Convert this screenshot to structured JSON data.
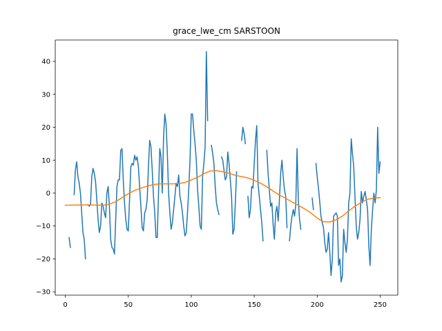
{
  "chart_data": {
    "type": "line",
    "title": "grace_lwe_cm SARSTOON",
    "xlabel": "",
    "ylabel": "",
    "xlim": [
      -8,
      264
    ],
    "ylim": [
      -31,
      46.5
    ],
    "xticks": [
      0,
      50,
      100,
      150,
      200,
      250
    ],
    "yticks": [
      -30,
      -20,
      -10,
      0,
      10,
      20,
      30,
      40
    ],
    "grid": false,
    "legend": "none",
    "series": [
      {
        "color": "#1f77b4",
        "segments": [
          [
            [
              3,
              -13.5
            ],
            [
              4,
              -16.5
            ]
          ],
          [
            [
              7,
              -0.5
            ],
            [
              8,
              7
            ],
            [
              9,
              9.5
            ],
            [
              10,
              5
            ],
            [
              11,
              3
            ],
            [
              12,
              0
            ],
            [
              13,
              -6
            ],
            [
              14,
              -12
            ],
            [
              15,
              -14
            ],
            [
              16,
              -20
            ]
          ],
          [
            [
              18,
              -3.5
            ],
            [
              19,
              -4
            ],
            [
              20,
              -3.5
            ],
            [
              21,
              5
            ],
            [
              22,
              7.5
            ],
            [
              23,
              6
            ],
            [
              24,
              3.5
            ],
            [
              25,
              -2
            ],
            [
              26,
              -8
            ],
            [
              27,
              -12
            ],
            [
              28,
              -10
            ],
            [
              29,
              -3
            ],
            [
              30,
              -4
            ],
            [
              31,
              -6
            ],
            [
              32,
              -7.5
            ],
            [
              33,
              0
            ],
            [
              34,
              2
            ],
            [
              35,
              -4
            ],
            [
              36,
              -14
            ],
            [
              37,
              -16.5
            ],
            [
              38,
              -17
            ],
            [
              39,
              -18.5
            ],
            [
              40,
              -8
            ],
            [
              41,
              2
            ],
            [
              42,
              4
            ],
            [
              43,
              4
            ],
            [
              44,
              13
            ],
            [
              45,
              13.5
            ],
            [
              46,
              4
            ],
            [
              47,
              -3
            ],
            [
              48,
              -8
            ],
            [
              49,
              -11
            ],
            [
              50,
              -11.5
            ],
            [
              51,
              -2
            ],
            [
              52,
              8
            ],
            [
              53,
              9
            ],
            [
              54,
              8.5
            ],
            [
              55,
              11.5
            ],
            [
              56,
              10
            ],
            [
              57,
              11
            ],
            [
              58,
              8
            ],
            [
              59,
              2
            ],
            [
              60,
              -4
            ],
            [
              61,
              -10.5
            ],
            [
              62,
              -11.5
            ],
            [
              63,
              -6
            ],
            [
              64,
              -5
            ],
            [
              65,
              -2
            ],
            [
              66,
              8
            ],
            [
              67,
              16
            ],
            [
              68,
              14
            ],
            [
              69,
              7
            ],
            [
              70,
              -1
            ],
            [
              71,
              -6
            ],
            [
              72,
              -13.5
            ],
            [
              73,
              -13.5
            ],
            [
              74,
              0
            ],
            [
              75,
              13.5
            ],
            [
              76,
              11
            ],
            [
              77,
              0
            ],
            [
              78,
              17
            ],
            [
              79,
              24
            ],
            [
              80,
              21
            ],
            [
              81,
              12
            ],
            [
              82,
              0
            ],
            [
              83,
              -6
            ],
            [
              84,
              -11
            ],
            [
              85,
              -9
            ],
            [
              86,
              -5
            ],
            [
              87,
              -1
            ],
            [
              88,
              3
            ],
            [
              89,
              2
            ],
            [
              90,
              5.5
            ],
            [
              91,
              -1
            ],
            [
              92,
              -3
            ],
            [
              93,
              -6
            ],
            [
              94,
              -10
            ],
            [
              95,
              -13
            ],
            [
              96,
              -12
            ],
            [
              97,
              -6
            ],
            [
              98,
              1
            ],
            [
              99,
              10
            ],
            [
              100,
              24
            ],
            [
              101,
              24
            ],
            [
              102,
              19
            ],
            [
              103,
              15
            ],
            [
              104,
              10
            ],
            [
              105,
              1
            ],
            [
              106,
              -4
            ],
            [
              107,
              -10
            ],
            [
              108,
              -11
            ],
            [
              109,
              5
            ],
            [
              110,
              9
            ],
            [
              111,
              14
            ],
            [
              112,
              43
            ],
            [
              113,
              22
            ]
          ],
          [
            [
              116,
              14.5
            ],
            [
              117,
              12
            ],
            [
              118,
              9
            ],
            [
              119,
              2
            ],
            [
              120,
              -3
            ],
            [
              121,
              -5
            ],
            [
              122,
              -6.5
            ]
          ],
          [
            [
              124,
              11
            ],
            [
              125,
              10
            ],
            [
              126,
              7
            ],
            [
              127,
              4
            ],
            [
              128,
              5
            ],
            [
              129,
              12.5
            ],
            [
              130,
              9
            ],
            [
              131,
              4
            ],
            [
              132,
              -1
            ],
            [
              133,
              -12.5
            ],
            [
              134,
              -11
            ],
            [
              135,
              -3
            ],
            [
              136,
              6.5
            ]
          ],
          [
            [
              140,
              16
            ],
            [
              141,
              20
            ],
            [
              142,
              18
            ],
            [
              143,
              15
            ]
          ],
          [
            [
              145,
              -1
            ],
            [
              146,
              -7.5
            ],
            [
              147,
              -5
            ],
            [
              148,
              2
            ],
            [
              149,
              1.5
            ],
            [
              150,
              9
            ],
            [
              151,
              16
            ],
            [
              152,
              20.5
            ],
            [
              153,
              3
            ],
            [
              154,
              -1
            ],
            [
              155,
              -5
            ],
            [
              156,
              -9
            ],
            [
              157,
              -14.5
            ]
          ],
          [
            [
              160,
              13
            ],
            [
              161,
              6
            ],
            [
              162,
              1
            ],
            [
              163,
              -4
            ],
            [
              164,
              -3
            ],
            [
              165,
              -9.5
            ],
            [
              166,
              -14
            ],
            [
              167,
              -6
            ],
            [
              168,
              -4
            ],
            [
              169,
              -8.5
            ],
            [
              170,
              -2
            ],
            [
              171,
              6
            ],
            [
              172,
              10
            ],
            [
              173,
              5
            ],
            [
              174,
              1
            ],
            [
              175,
              -1
            ],
            [
              176,
              -10.5
            ]
          ],
          [
            [
              178,
              -14.5
            ],
            [
              179,
              -10
            ],
            [
              180,
              -7
            ],
            [
              181,
              -5
            ],
            [
              182,
              -7
            ],
            [
              183,
              -3.5
            ],
            [
              184,
              13.5
            ],
            [
              185,
              -2
            ],
            [
              186,
              -8
            ],
            [
              187,
              -11
            ]
          ],
          [
            [
              196,
              -1.5
            ],
            [
              197,
              -5
            ]
          ],
          [
            [
              199,
              9
            ],
            [
              200,
              5
            ],
            [
              201,
              1.5
            ],
            [
              202,
              -2.5
            ],
            [
              203,
              -7
            ],
            [
              204,
              -9
            ],
            [
              205,
              -10.5
            ],
            [
              206,
              -15
            ],
            [
              207,
              -18
            ],
            [
              208,
              -17
            ],
            [
              209,
              -12
            ],
            [
              210,
              -18
            ],
            [
              211,
              -25
            ],
            [
              212,
              -20
            ],
            [
              213,
              -7
            ],
            [
              214,
              -6.5
            ],
            [
              215,
              -6
            ],
            [
              216,
              -7
            ],
            [
              217,
              -22
            ],
            [
              218,
              -20
            ],
            [
              219,
              -27
            ],
            [
              220,
              -25
            ],
            [
              221,
              -11
            ],
            [
              222,
              -15
            ],
            [
              223,
              -18
            ],
            [
              224,
              -14
            ],
            [
              225,
              -3
            ],
            [
              226,
              0
            ],
            [
              227,
              16.5
            ],
            [
              228,
              12
            ],
            [
              229,
              8
            ],
            [
              230,
              -1
            ],
            [
              231,
              -10
            ],
            [
              232,
              -14
            ],
            [
              233,
              -12
            ],
            [
              234,
              -8
            ],
            [
              235,
              0.5
            ],
            [
              236,
              -3
            ],
            [
              237,
              -1
            ],
            [
              238,
              0.5
            ],
            [
              239,
              -2
            ],
            [
              240,
              -5
            ],
            [
              241,
              -16
            ],
            [
              242,
              -22
            ],
            [
              243,
              -11
            ],
            [
              244,
              -5
            ],
            [
              245,
              0
            ],
            [
              246,
              -3
            ],
            [
              247,
              1
            ],
            [
              248,
              20
            ],
            [
              249,
              6
            ],
            [
              250,
              9.5
            ]
          ]
        ]
      },
      {
        "color": "#ff7f0e",
        "segments": [
          [
            [
              0,
              -3.7
            ],
            [
              10,
              -3.6
            ],
            [
              20,
              -3.6
            ],
            [
              30,
              -3.7
            ],
            [
              35,
              -3.4
            ],
            [
              40,
              -2.6
            ],
            [
              45,
              -1.4
            ],
            [
              50,
              -0.2
            ],
            [
              55,
              0.8
            ],
            [
              60,
              1.5
            ],
            [
              65,
              2.1
            ],
            [
              70,
              2.6
            ],
            [
              75,
              2.8
            ],
            [
              80,
              2.8
            ],
            [
              85,
              2.8
            ],
            [
              90,
              2.9
            ],
            [
              95,
              3.2
            ],
            [
              100,
              4
            ],
            [
              105,
              4.8
            ],
            [
              110,
              5.9
            ],
            [
              115,
              6.7
            ],
            [
              120,
              6.8
            ],
            [
              125,
              6.5
            ],
            [
              130,
              6
            ],
            [
              135,
              5.4
            ],
            [
              140,
              5
            ],
            [
              145,
              4.6
            ],
            [
              150,
              3.9
            ],
            [
              155,
              3
            ],
            [
              160,
              1.9
            ],
            [
              165,
              0.6
            ],
            [
              170,
              -0.6
            ],
            [
              175,
              -1.6
            ],
            [
              180,
              -2.7
            ],
            [
              185,
              -3.7
            ],
            [
              190,
              -4.8
            ],
            [
              195,
              -6
            ],
            [
              200,
              -7.6
            ],
            [
              205,
              -8.7
            ],
            [
              210,
              -8.8
            ],
            [
              215,
              -8.1
            ],
            [
              220,
              -7
            ],
            [
              225,
              -5.4
            ],
            [
              230,
              -4
            ],
            [
              235,
              -2.8
            ],
            [
              240,
              -1.9
            ],
            [
              245,
              -1.5
            ],
            [
              250,
              -1.4
            ]
          ]
        ]
      }
    ]
  }
}
